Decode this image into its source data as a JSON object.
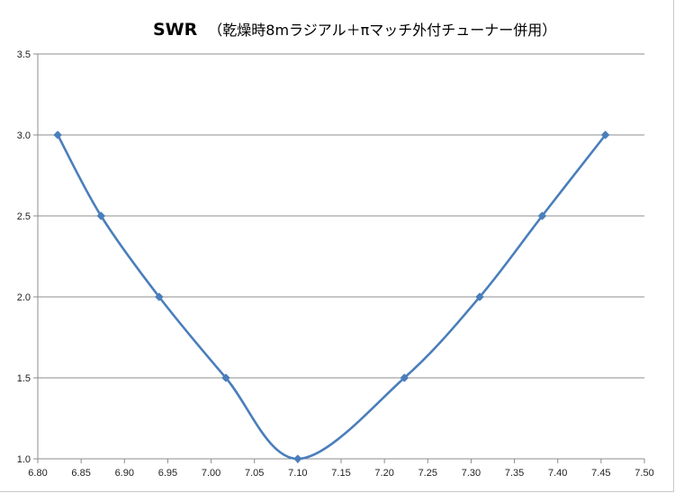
{
  "chart_data": {
    "type": "line",
    "title": "SWR",
    "subtitle": "（乾燥時8mラジアル＋πマッチ外付チューナー併用）",
    "xlabel": "",
    "ylabel": "",
    "xlim": [
      6.8,
      7.5
    ],
    "ylim": [
      1.0,
      3.5
    ],
    "x_tick_labels": [
      "6.80",
      "6.85",
      "6.90",
      "6.95",
      "7.00",
      "7.05",
      "7.10",
      "7.15",
      "7.20",
      "7.25",
      "7.30",
      "7.35",
      "7.40",
      "7.45",
      "7.50"
    ],
    "y_tick_labels": [
      "1.0",
      "1.5",
      "2.0",
      "2.5",
      "3.0",
      "3.5"
    ],
    "grid": "horizontal",
    "legend": "none",
    "series": [
      {
        "color": "#4a7ebb",
        "marker": "diamond",
        "x": [
          6.823,
          6.873,
          6.94,
          7.017,
          7.1,
          7.223,
          7.31,
          7.382,
          7.455
        ],
        "y": [
          3.0,
          2.5,
          2.0,
          1.5,
          1.0,
          1.5,
          2.0,
          2.5,
          3.0
        ]
      }
    ]
  }
}
